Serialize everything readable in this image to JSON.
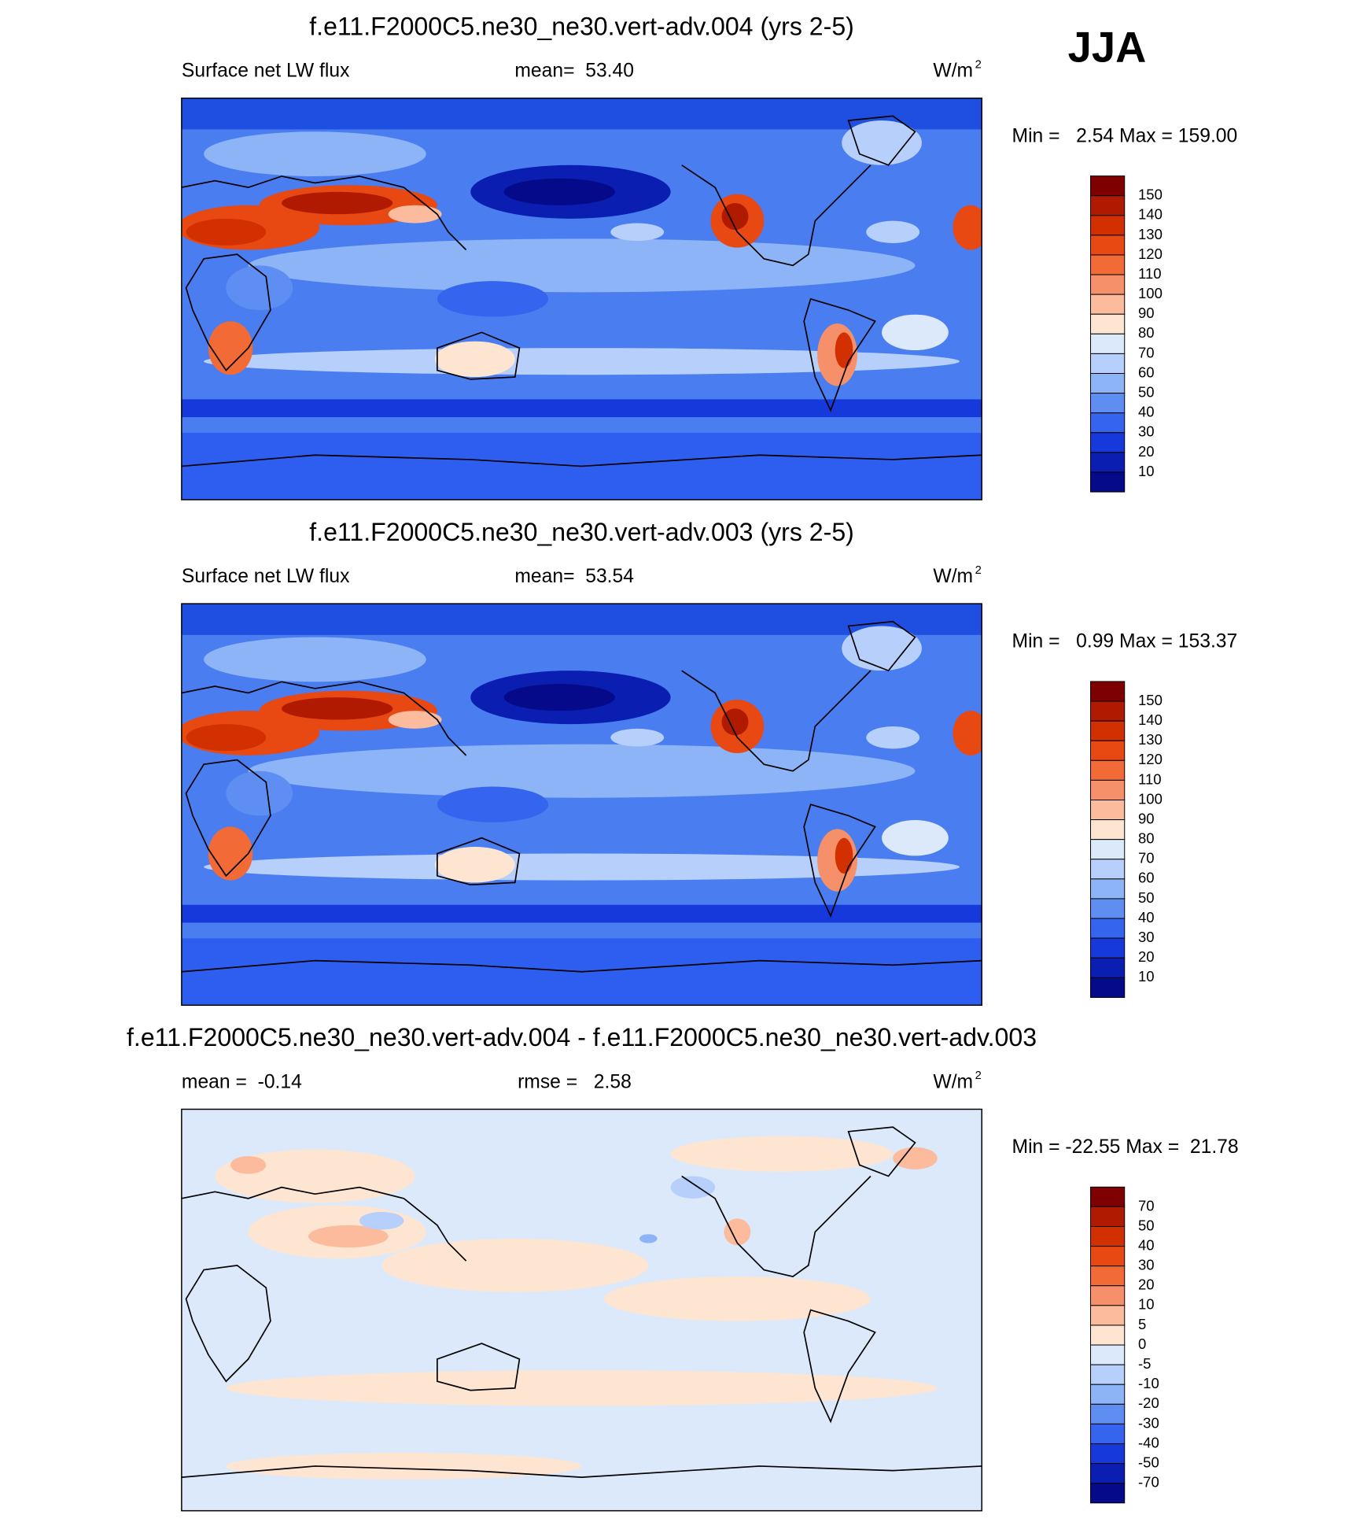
{
  "season": "JJA",
  "panels": [
    {
      "title": "f.e11.F2000C5.ne30_ne30.vert-adv.004 (yrs 2-5)",
      "left": "Surface net LW flux",
      "center": "mean=  53.40",
      "units": "W/m",
      "units_sup": "2",
      "minmax": "Min =   2.54 Max = 159.00",
      "colorbar": {
        "labels": [
          150,
          140,
          130,
          120,
          110,
          100,
          90,
          80,
          70,
          60,
          50,
          40,
          30,
          20,
          10
        ],
        "colors": [
          "#7f0000",
          "#b01a00",
          "#d23000",
          "#e84812",
          "#f26a35",
          "#f6906a",
          "#fbbb9c",
          "#fde5d2",
          "#dce9fb",
          "#b7cffb",
          "#8db4f7",
          "#5e8ef2",
          "#3564ef",
          "#1639dc",
          "#0a1fb2",
          "#050a8a"
        ]
      }
    },
    {
      "title": "f.e11.F2000C5.ne30_ne30.vert-adv.003 (yrs 2-5)",
      "left": "Surface net LW flux",
      "center": "mean=  53.54",
      "units": "W/m",
      "units_sup": "2",
      "minmax": "Min =   0.99 Max = 153.37",
      "colorbar": {
        "labels": [
          150,
          140,
          130,
          120,
          110,
          100,
          90,
          80,
          70,
          60,
          50,
          40,
          30,
          20,
          10
        ],
        "colors": [
          "#7f0000",
          "#b01a00",
          "#d23000",
          "#e84812",
          "#f26a35",
          "#f6906a",
          "#fbbb9c",
          "#fde5d2",
          "#dce9fb",
          "#b7cffb",
          "#8db4f7",
          "#5e8ef2",
          "#3564ef",
          "#1639dc",
          "#0a1fb2",
          "#050a8a"
        ]
      }
    },
    {
      "title": "f.e11.F2000C5.ne30_ne30.vert-adv.004 - f.e11.F2000C5.ne30_ne30.vert-adv.003",
      "left": "mean =  -0.14",
      "center": "rmse =   2.58",
      "units": "W/m",
      "units_sup": "2",
      "minmax": "Min = -22.55 Max =  21.78",
      "colorbar": {
        "labels": [
          70,
          50,
          40,
          30,
          20,
          10,
          5,
          0,
          -5,
          -10,
          -20,
          -30,
          -40,
          -50,
          -70
        ],
        "colors": [
          "#7f0000",
          "#b01a00",
          "#d23000",
          "#e84812",
          "#f26a35",
          "#f6906a",
          "#fbbb9c",
          "#fde5d2",
          "#dce9fb",
          "#b7cffb",
          "#8db4f7",
          "#5e8ef2",
          "#3564ef",
          "#1639dc",
          "#0a1fb2",
          "#050a8a"
        ]
      }
    }
  ]
}
